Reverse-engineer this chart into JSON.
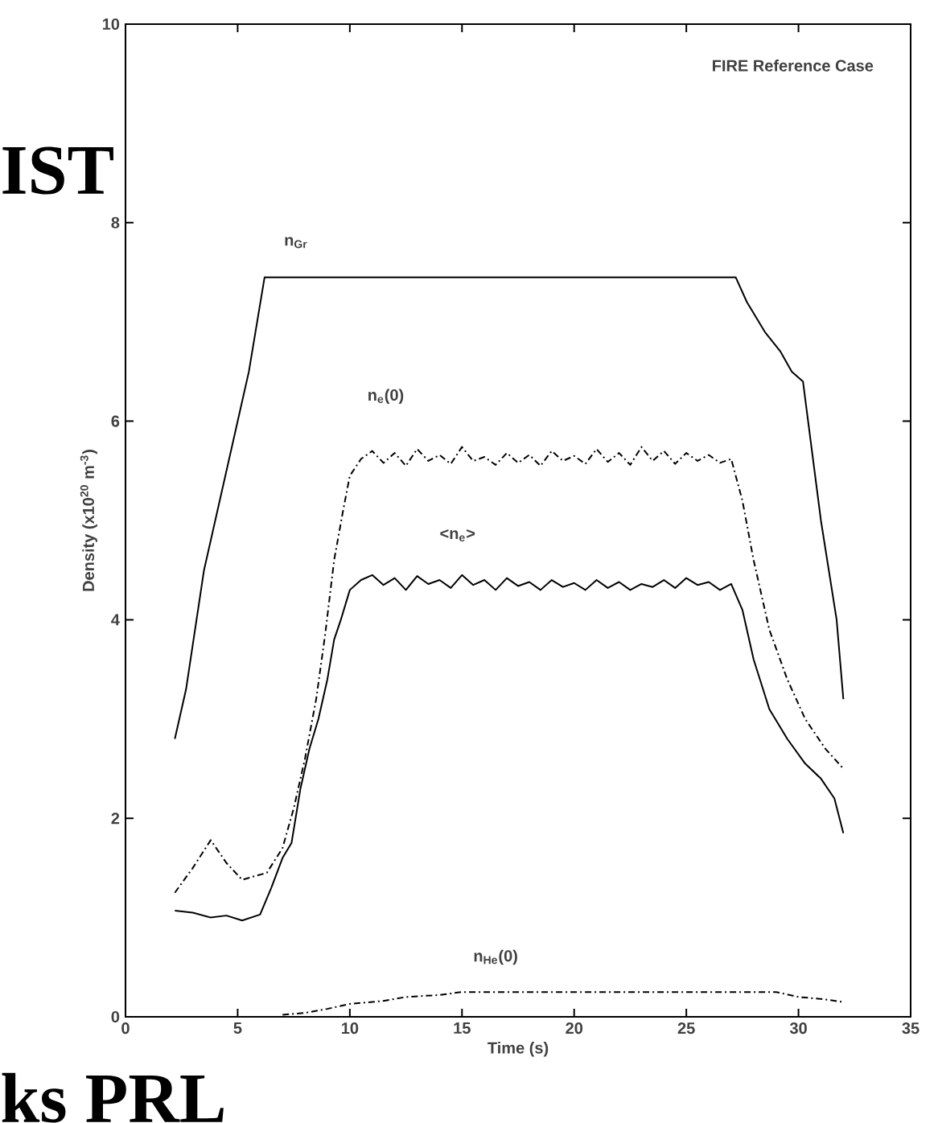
{
  "chart_data": {
    "type": "line",
    "xlabel": "Time (s)",
    "ylabel": "Density (x10$^{20}$ m$^{-3}$)",
    "xlim": [
      0,
      35
    ],
    "xticks": [
      0,
      5,
      10,
      15,
      20,
      25,
      30,
      35
    ],
    "ylim": [
      0,
      10
    ],
    "yticks": [
      0,
      2,
      4,
      6,
      8,
      10
    ],
    "annotations": [
      "FIRE Reference Case",
      "IST",
      "ks PRL"
    ],
    "series": [
      {
        "name": "n$_{Gr}$",
        "color": "#000000",
        "line_style": "solid",
        "x": [
          2.2,
          2.7,
          3.5,
          4.5,
          5.5,
          6.2,
          27.2,
          27.7,
          28.5,
          29.2,
          29.7,
          30.2,
          31.0,
          31.7,
          32.0
        ],
        "values": [
          2.8,
          3.3,
          4.5,
          5.5,
          6.5,
          7.45,
          7.45,
          7.2,
          6.9,
          6.7,
          6.5,
          6.4,
          5.0,
          4.0,
          3.2
        ]
      },
      {
        "name": "n$_{e}$(0)",
        "color": "#000000",
        "line_style": "dashed",
        "x": [
          2.2,
          3.0,
          3.8,
          4.5,
          5.2,
          5.8,
          6.3,
          7.0,
          7.5,
          8.0,
          8.5,
          8.9,
          9.3,
          9.7,
          10.0,
          10.5,
          11.0,
          11.5,
          12.0,
          12.5,
          13.0,
          13.5,
          14.0,
          14.5,
          15.0,
          15.5,
          16.0,
          16.5,
          17.0,
          17.5,
          18.0,
          18.5,
          19.0,
          19.5,
          20.0,
          20.5,
          21.0,
          21.5,
          22.0,
          22.5,
          23.0,
          23.5,
          24.0,
          24.5,
          25.0,
          25.5,
          26.0,
          26.5,
          27.0,
          27.5,
          28.0,
          28.7,
          29.5,
          30.3,
          31.2,
          32.0
        ],
        "values": [
          1.25,
          1.5,
          1.78,
          1.55,
          1.38,
          1.42,
          1.45,
          1.7,
          2.1,
          2.6,
          3.2,
          3.85,
          4.6,
          5.1,
          5.45,
          5.62,
          5.7,
          5.58,
          5.68,
          5.55,
          5.72,
          5.6,
          5.66,
          5.57,
          5.74,
          5.6,
          5.64,
          5.56,
          5.68,
          5.58,
          5.66,
          5.55,
          5.7,
          5.6,
          5.65,
          5.57,
          5.72,
          5.59,
          5.68,
          5.56,
          5.74,
          5.6,
          5.7,
          5.57,
          5.68,
          5.6,
          5.66,
          5.58,
          5.62,
          5.2,
          4.6,
          3.9,
          3.4,
          3.0,
          2.7,
          2.5
        ]
      },
      {
        "name": "<n$_{e}$>",
        "color": "#000000",
        "line_style": "solid",
        "x": [
          2.2,
          3.0,
          3.8,
          4.5,
          5.2,
          6.0,
          6.5,
          7.0,
          7.4,
          7.8,
          8.2,
          8.6,
          9.0,
          9.3,
          9.6,
          10.0,
          10.5,
          11.0,
          11.5,
          12.0,
          12.5,
          13.0,
          13.5,
          14.0,
          14.5,
          15.0,
          15.5,
          16.0,
          16.5,
          17.0,
          17.5,
          18.0,
          18.5,
          19.0,
          19.5,
          20.0,
          20.5,
          21.0,
          21.5,
          22.0,
          22.5,
          23.0,
          23.5,
          24.0,
          24.5,
          25.0,
          25.5,
          26.0,
          26.5,
          27.0,
          27.5,
          28.0,
          28.7,
          29.5,
          30.3,
          31.0,
          31.6,
          32.0
        ],
        "values": [
          1.07,
          1.05,
          1.0,
          1.02,
          0.97,
          1.03,
          1.3,
          1.6,
          1.75,
          2.3,
          2.7,
          3.0,
          3.4,
          3.8,
          4.0,
          4.3,
          4.4,
          4.45,
          4.35,
          4.42,
          4.3,
          4.44,
          4.36,
          4.4,
          4.32,
          4.45,
          4.35,
          4.4,
          4.3,
          4.42,
          4.34,
          4.38,
          4.3,
          4.4,
          4.33,
          4.37,
          4.3,
          4.4,
          4.32,
          4.38,
          4.3,
          4.36,
          4.33,
          4.4,
          4.32,
          4.42,
          4.35,
          4.38,
          4.3,
          4.36,
          4.1,
          3.6,
          3.1,
          2.8,
          2.55,
          2.4,
          2.2,
          1.85
        ]
      },
      {
        "name": "n$_{He}$(0)",
        "color": "#000000",
        "line_style": "dashed",
        "x": [
          7.0,
          8.0,
          9.0,
          10.0,
          11.5,
          12.5,
          14.0,
          15.0,
          29.0,
          30.0,
          31.0,
          32.0
        ],
        "values": [
          0.02,
          0.04,
          0.08,
          0.13,
          0.16,
          0.2,
          0.22,
          0.25,
          0.25,
          0.2,
          0.18,
          0.15
        ]
      }
    ]
  }
}
